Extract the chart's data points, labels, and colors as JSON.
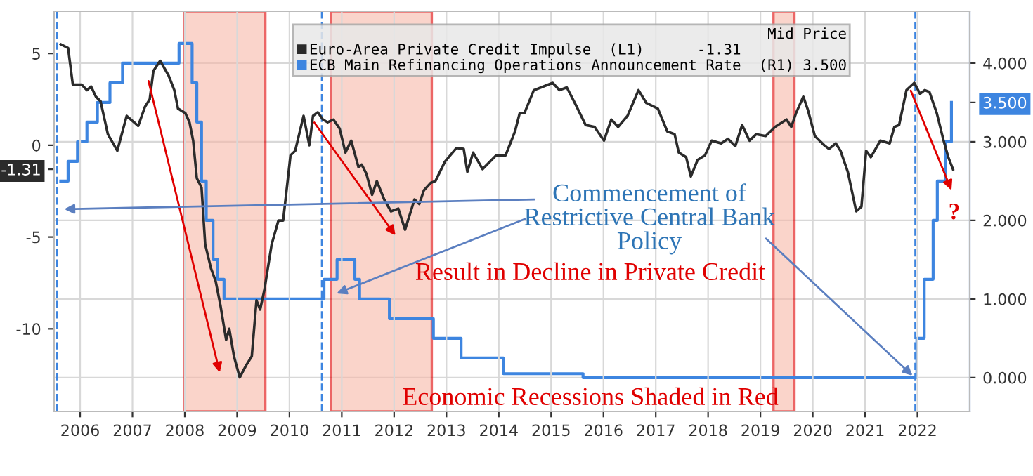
{
  "chart_data": {
    "type": "line",
    "legend_title": "Mid Price",
    "legend": "top",
    "grid": true,
    "xlim": [
      2006.0,
      2023.5
    ],
    "xticks": [
      {
        "value": 2006.5,
        "label": "2006"
      },
      {
        "value": 2007.5,
        "label": "2007"
      },
      {
        "value": 2008.5,
        "label": "2008"
      },
      {
        "value": 2009.5,
        "label": "2009"
      },
      {
        "value": 2010.5,
        "label": "2010"
      },
      {
        "value": 2011.5,
        "label": "2011"
      },
      {
        "value": 2012.5,
        "label": "2012"
      },
      {
        "value": 2013.5,
        "label": "2013"
      },
      {
        "value": 2014.5,
        "label": "2014"
      },
      {
        "value": 2015.5,
        "label": "2015"
      },
      {
        "value": 2016.5,
        "label": "2016"
      },
      {
        "value": 2017.5,
        "label": "2017"
      },
      {
        "value": 2018.5,
        "label": "2018"
      },
      {
        "value": 2019.5,
        "label": "2019"
      },
      {
        "value": 2020.5,
        "label": "2020"
      },
      {
        "value": 2021.5,
        "label": "2021"
      },
      {
        "value": 2022.5,
        "label": "2022"
      }
    ],
    "ylim": [
      -14.5,
      7.3
    ],
    "yticks": [
      5,
      0,
      -1.31,
      -5,
      -10
    ],
    "y2lim": [
      -0.43,
      4.66
    ],
    "y2ticks": [
      {
        "value": 4,
        "label": "4.000"
      },
      {
        "value": 3.5,
        "label": "3.500"
      },
      {
        "value": 3,
        "label": "3.000"
      },
      {
        "value": 2,
        "label": "2.000"
      },
      {
        "value": 1,
        "label": "1.000"
      },
      {
        "value": 0,
        "label": "0.000"
      }
    ],
    "series": [
      {
        "name": "Euro-Area Private Credit Impulse  (L1)      -1.31",
        "color": "#2b2b2b",
        "axis": "y",
        "x": [
          2006.13,
          2006.27,
          2006.36,
          2006.53,
          2006.63,
          2006.71,
          2006.8,
          2006.89,
          2007.03,
          2007.21,
          2007.39,
          2007.61,
          2007.74,
          2007.83,
          2007.9,
          2008.03,
          2008.19,
          2008.3,
          2008.37,
          2008.51,
          2008.59,
          2008.66,
          2008.73,
          2008.82,
          2008.89,
          2009.0,
          2009.09,
          2009.18,
          2009.29,
          2009.35,
          2009.44,
          2009.55,
          2009.67,
          2009.78,
          2009.87,
          2009.94,
          2010.02,
          2010.16,
          2010.29,
          2010.38,
          2010.52,
          2010.61,
          2010.77,
          2010.88,
          2010.95,
          2011.04,
          2011.14,
          2011.23,
          2011.34,
          2011.46,
          2011.57,
          2011.68,
          2011.82,
          2011.88,
          2011.97,
          2012.08,
          2012.17,
          2012.31,
          2012.44,
          2012.58,
          2012.71,
          2012.89,
          2012.98,
          2013.07,
          2013.2,
          2013.29,
          2013.47,
          2013.69,
          2013.83,
          2013.9,
          2014.01,
          2014.19,
          2014.45,
          2014.63,
          2014.81,
          2014.9,
          2014.99,
          2015.17,
          2015.31,
          2015.53,
          2015.66,
          2015.8,
          2015.98,
          2016.16,
          2016.33,
          2016.51,
          2016.65,
          2016.78,
          2016.96,
          2017.17,
          2017.32,
          2017.54,
          2017.72,
          2017.86,
          2017.94,
          2018.08,
          2018.17,
          2018.3,
          2018.44,
          2018.57,
          2018.75,
          2018.88,
          2019.02,
          2019.15,
          2019.29,
          2019.42,
          2019.6,
          2019.78,
          2020.0,
          2020.09,
          2020.18,
          2020.32,
          2020.41,
          2020.54,
          2020.72,
          2020.81,
          2020.94,
          2021.03,
          2021.17,
          2021.33,
          2021.43,
          2021.52,
          2021.61,
          2021.79,
          2021.97,
          2022.06,
          2022.15,
          2022.29,
          2022.44,
          2022.55,
          2022.64,
          2022.73,
          2022.87,
          2023.0,
          2023.09,
          2023.18
        ],
        "values": [
          5.5,
          5.3,
          3.3,
          3.3,
          3.0,
          3.2,
          2.65,
          2.4,
          0.6,
          -0.3,
          1.6,
          1.05,
          2.1,
          2.5,
          4.05,
          4.6,
          3.8,
          3.0,
          2.0,
          1.75,
          1.25,
          0.25,
          -1.8,
          -2.3,
          -5.4,
          -6.7,
          -7.4,
          -8.7,
          -10.6,
          -10.0,
          -11.5,
          -12.65,
          -12.0,
          -11.5,
          -8.45,
          -8.95,
          -7.9,
          -5.4,
          -4.1,
          -4.1,
          -0.55,
          -0.3,
          1.6,
          0.0,
          1.6,
          1.8,
          1.4,
          1.25,
          1.4,
          0.9,
          -0.4,
          0.25,
          -1.2,
          -1.05,
          -1.55,
          -2.7,
          -1.95,
          -2.95,
          -3.6,
          -3.45,
          -4.6,
          -2.95,
          -3.2,
          -2.45,
          -2.05,
          -1.95,
          -0.9,
          -0.15,
          -0.2,
          -1.45,
          -0.4,
          -1.3,
          -0.55,
          -0.55,
          0.75,
          1.75,
          1.75,
          3.0,
          3.15,
          3.4,
          3.0,
          3.15,
          2.15,
          1.1,
          1.0,
          0.25,
          1.4,
          1.0,
          1.6,
          3.0,
          2.3,
          2.0,
          0.75,
          0.6,
          -0.4,
          -0.65,
          -1.7,
          -0.8,
          -0.55,
          0.25,
          0.1,
          0.35,
          -0.05,
          1.1,
          0.25,
          0.6,
          0.5,
          1.0,
          1.4,
          1.0,
          1.75,
          2.65,
          1.9,
          0.5,
          0.0,
          -0.2,
          0.1,
          -0.3,
          -1.45,
          -3.6,
          -3.35,
          -0.3,
          -0.65,
          0.25,
          0.1,
          1.0,
          1.1,
          3.0,
          3.4,
          2.8,
          3.0,
          2.9,
          1.75,
          0.25,
          -0.65,
          -1.31
        ]
      },
      {
        "name": "ECB Main Refinancing Operations Announcement Rate  (R1) 3.500",
        "color": "#3d85e0",
        "type": "step",
        "axis": "y2",
        "x": [
          2006.13,
          2006.27,
          2006.45,
          2006.63,
          2006.83,
          2007.07,
          2007.31,
          2008.39,
          2008.64,
          2008.73,
          2008.82,
          2008.91,
          2009.04,
          2009.13,
          2009.25,
          2011.16,
          2011.41,
          2011.75,
          2011.84,
          2012.41,
          2013.25,
          2013.78,
          2014.59,
          2016.11,
          2022.49,
          2022.63,
          2022.8,
          2022.88,
          2023.04,
          2023.15
        ],
        "values": [
          2.5,
          2.75,
          3.0,
          3.25,
          3.5,
          3.75,
          4.0,
          4.25,
          3.75,
          3.25,
          2.5,
          2.0,
          1.5,
          1.25,
          1.0,
          1.25,
          1.5,
          1.25,
          1.0,
          0.75,
          0.5,
          0.25,
          0.05,
          0.0,
          0.5,
          1.25,
          2.0,
          2.5,
          3.0,
          3.5
        ]
      }
    ],
    "bands": [
      {
        "axis": "x",
        "from": 2008.49,
        "to": 2010.04,
        "color": "#f7b8a8"
      },
      {
        "axis": "x",
        "from": 2011.29,
        "to": 2013.22,
        "color": "#f7b8a8"
      },
      {
        "axis": "x",
        "from": 2019.75,
        "to": 2020.15,
        "color": "#f7b8a8"
      }
    ],
    "ref_lines": [
      {
        "axis": "x",
        "value": 2006.06,
        "color": "#3d85e0",
        "line_style": "dashed"
      },
      {
        "axis": "x",
        "value": 2011.12,
        "color": "#3d85e0",
        "line_style": "dashed"
      },
      {
        "axis": "x",
        "value": 2022.46,
        "color": "#3d85e0",
        "line_style": "dashed"
      }
    ],
    "annotations": [
      {
        "text": "Commencement of\nRestrictive Central Bank\nPolicy",
        "x": 2022.46,
        "y": -12.7
      },
      "Result in Decline in Private Credit",
      "Economic Recessions Shaded in Red",
      "?"
    ]
  }
}
